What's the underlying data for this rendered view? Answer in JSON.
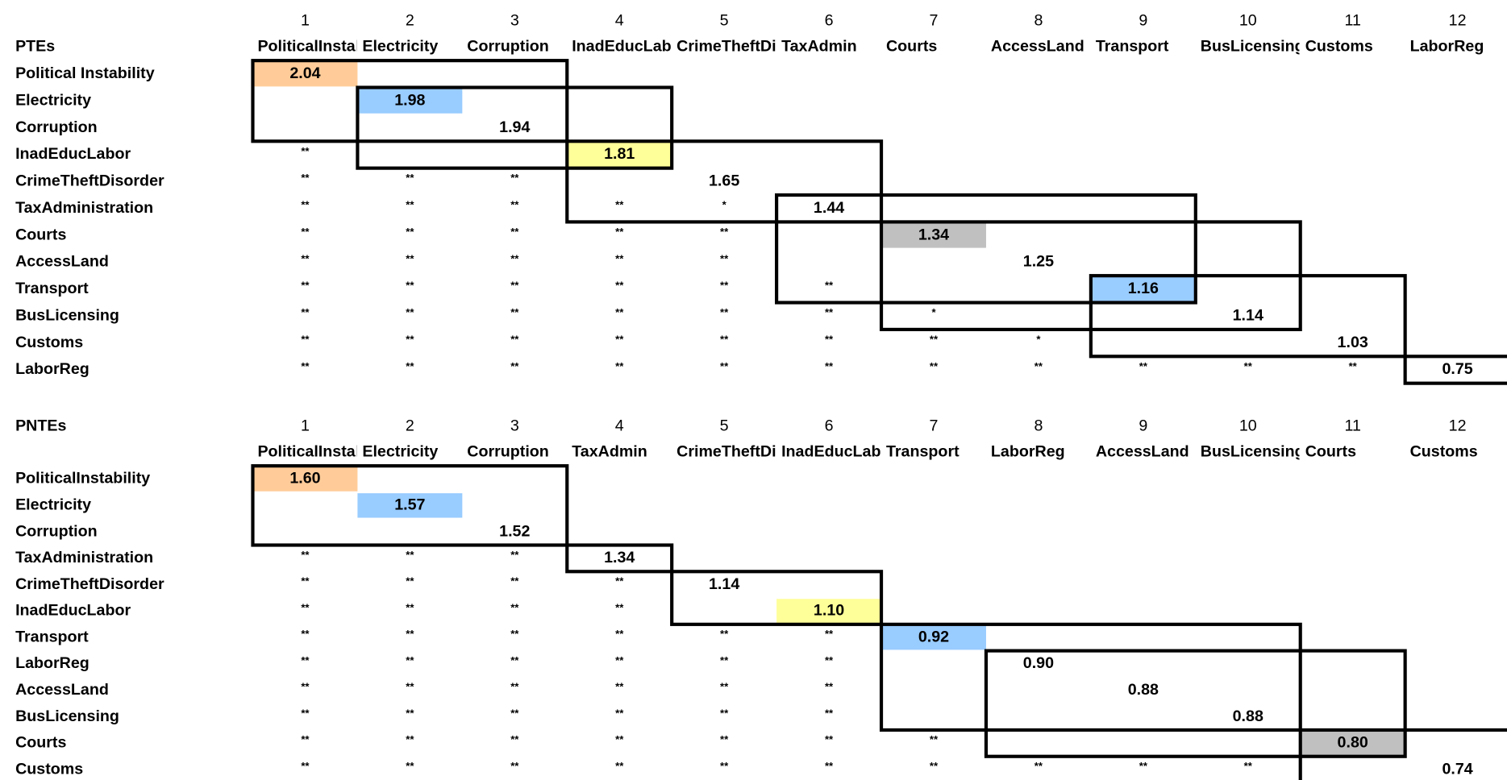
{
  "sections": [
    {
      "title": "PTEs",
      "column_numbers": [
        1,
        2,
        3,
        4,
        5,
        6,
        7,
        8,
        9,
        10,
        11,
        12
      ],
      "column_headers": [
        "PoliticalInstability",
        "Electricity",
        "Corruption",
        "InadEducLabor",
        "CrimeTheftDisorder",
        "TaxAdmin",
        "Courts",
        "AccessLand",
        "Transport",
        "BusLicensing",
        "Customs",
        "LaborReg"
      ],
      "rows": [
        {
          "label": "Political Instability",
          "cells": [
            "2.04"
          ],
          "highlight": "#FFCC99"
        },
        {
          "label": "Electricity",
          "cells": [
            null,
            "1.98"
          ],
          "highlight": "#99CCFF"
        },
        {
          "label": "Corruption",
          "cells": [
            null,
            null,
            "1.94"
          ]
        },
        {
          "label": "InadEducLabor",
          "cells": [
            "**",
            null,
            null,
            "1.81"
          ],
          "highlight": "#FFFF99"
        },
        {
          "label": "CrimeTheftDisorder",
          "cells": [
            "**",
            "**",
            "**",
            null,
            "1.65"
          ]
        },
        {
          "label": "TaxAdministration",
          "cells": [
            "**",
            "**",
            "**",
            "**",
            "*",
            "1.44"
          ]
        },
        {
          "label": "Courts",
          "cells": [
            "**",
            "**",
            "**",
            "**",
            "**",
            null,
            "1.34"
          ],
          "highlight": "#C0C0C0"
        },
        {
          "label": "AccessLand",
          "cells": [
            "**",
            "**",
            "**",
            "**",
            "**",
            null,
            null,
            "1.25"
          ]
        },
        {
          "label": "Transport",
          "cells": [
            "**",
            "**",
            "**",
            "**",
            "**",
            "**",
            null,
            null,
            "1.16"
          ],
          "highlight": "#99CCFF"
        },
        {
          "label": "BusLicensing",
          "cells": [
            "**",
            "**",
            "**",
            "**",
            "**",
            "**",
            "*",
            null,
            null,
            "1.14"
          ]
        },
        {
          "label": "Customs",
          "cells": [
            "**",
            "**",
            "**",
            "**",
            "**",
            "**",
            "**",
            "*",
            null,
            null,
            "1.03"
          ]
        },
        {
          "label": "LaborReg",
          "cells": [
            "**",
            "**",
            "**",
            "**",
            "**",
            "**",
            "**",
            "**",
            "**",
            "**",
            "**",
            "0.75"
          ]
        }
      ]
    },
    {
      "title": "PNTEs",
      "column_numbers": [
        1,
        2,
        3,
        4,
        5,
        6,
        7,
        8,
        9,
        10,
        11,
        12
      ],
      "column_headers": [
        "PoliticalInstability",
        "Electricity",
        "Corruption",
        "TaxAdmin",
        "CrimeTheftDisorder",
        "InadEducLabor",
        "Transport",
        "LaborReg",
        "AccessLand",
        "BusLicensing",
        "Courts",
        "Customs"
      ],
      "rows": [
        {
          "label": "PoliticalInstability",
          "cells": [
            "1.60"
          ],
          "highlight": "#FFCC99"
        },
        {
          "label": "Electricity",
          "cells": [
            null,
            "1.57"
          ],
          "highlight": "#99CCFF"
        },
        {
          "label": "Corruption",
          "cells": [
            null,
            null,
            "1.52"
          ]
        },
        {
          "label": "TaxAdministration",
          "cells": [
            "**",
            "**",
            "**",
            "1.34"
          ]
        },
        {
          "label": "CrimeTheftDisorder",
          "cells": [
            "**",
            "**",
            "**",
            "**",
            "1.14"
          ]
        },
        {
          "label": "InadEducLabor",
          "cells": [
            "**",
            "**",
            "**",
            "**",
            null,
            "1.10"
          ],
          "highlight": "#FFFF99"
        },
        {
          "label": "Transport",
          "cells": [
            "**",
            "**",
            "**",
            "**",
            "**",
            "**",
            "0.92"
          ],
          "highlight": "#99CCFF"
        },
        {
          "label": "LaborReg",
          "cells": [
            "**",
            "**",
            "**",
            "**",
            "**",
            "**",
            null,
            "0.90"
          ]
        },
        {
          "label": "AccessLand",
          "cells": [
            "**",
            "**",
            "**",
            "**",
            "**",
            "**",
            null,
            null,
            "0.88"
          ]
        },
        {
          "label": "BusLicensing",
          "cells": [
            "**",
            "**",
            "**",
            "**",
            "**",
            "**",
            null,
            null,
            null,
            "0.88"
          ]
        },
        {
          "label": "Courts",
          "cells": [
            "**",
            "**",
            "**",
            "**",
            "**",
            "**",
            "**",
            null,
            null,
            null,
            "0.80"
          ],
          "highlight": "#C0C0C0"
        },
        {
          "label": "Customs",
          "cells": [
            "**",
            "**",
            "**",
            "**",
            "**",
            "**",
            "**",
            "**",
            "**",
            "**",
            null,
            "0.74"
          ]
        }
      ]
    }
  ]
}
